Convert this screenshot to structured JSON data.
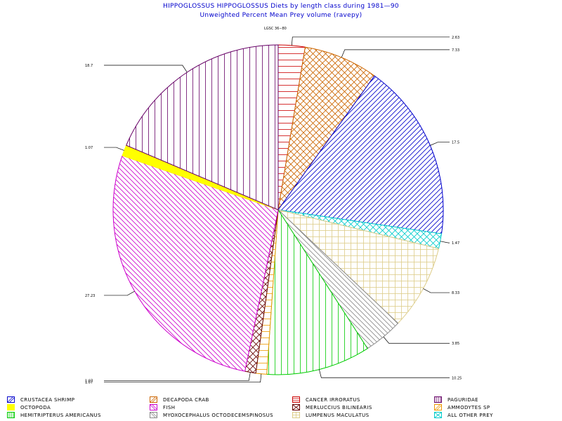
{
  "title_line1": "HIPPOGLOSSUS HIPPOGLOSSUS Diets by length class during 1981—90",
  "title_line2": "Unweighted Percent Mean Prey volume (ravepy)",
  "top_label": "LGSC 36−80",
  "chart_data": {
    "type": "pie",
    "title": "HIPPOGLOSSUS HIPPOGLOSSUS Diets by length class during 1981—90",
    "subtitle": "Unweighted Percent Mean Prey volume (ravepy)",
    "start_angle_deg": 90,
    "direction": "clockwise",
    "slices": [
      {
        "label": "CANCER IRRORATUS",
        "value": 2.63,
        "value_label": "2.63",
        "color": "#cc0000",
        "pattern": "hlines"
      },
      {
        "label": "DECAPODA CRAB",
        "value": 7.33,
        "value_label": "7.33",
        "color": "#cc6600",
        "pattern": "crosshatch"
      },
      {
        "label": "CRUSTACEA SHRIMP",
        "value": 17.5,
        "value_label": "17.5",
        "color": "#0000cc",
        "pattern": "diag"
      },
      {
        "label": "ALL OTHER PREY",
        "value": 1.47,
        "value_label": "1.47",
        "color": "#00cccc",
        "pattern": "crosshatch"
      },
      {
        "label": "LUMPENUS MACULATUS",
        "value": 8.33,
        "value_label": "8.33",
        "color": "#ddcc88",
        "pattern": "grid"
      },
      {
        "label": "MYOXOCEPHALUS OCTODECEMSPINOSUS",
        "value": 3.85,
        "value_label": "3.85",
        "color": "#888888",
        "pattern": "diag2"
      },
      {
        "label": "HEMITRIPTERUS AMERICANUS",
        "value": 10.25,
        "value_label": "10.25",
        "color": "#00cc00",
        "pattern": "vlines"
      },
      {
        "label": "AMMODYTES SP",
        "value": 1.07,
        "value_label": "1.07",
        "color": "#ee9900",
        "pattern": "hlines"
      },
      {
        "label": "MERLUCCIUS BILINEARIS",
        "value": 1.07,
        "value_label": "1.07",
        "color": "#660000",
        "pattern": "crosshatch"
      },
      {
        "label": "FISH",
        "value": 27.23,
        "value_label": "27.23",
        "color": "#cc00cc",
        "pattern": "diag2"
      },
      {
        "label": "OCTOPODA",
        "value": 1.07,
        "value_label": "1.07",
        "color": "#ffff00",
        "pattern": "solid"
      },
      {
        "label": "PAGURIDAE",
        "value": 18.7,
        "value_label": "18.7",
        "color": "#660066",
        "pattern": "vlines"
      }
    ]
  },
  "legend": [
    {
      "label": "CRUSTACEA SHRIMP",
      "color": "#0000cc",
      "pattern": "diag"
    },
    {
      "label": "DECAPODA CRAB",
      "color": "#cc6600",
      "pattern": "diag"
    },
    {
      "label": "CANCER IRRORATUS",
      "color": "#cc0000",
      "pattern": "hlines"
    },
    {
      "label": "PAGURIDAE",
      "color": "#660066",
      "pattern": "vlines"
    },
    {
      "label": "OCTOPODA",
      "color": "#ffff00",
      "pattern": "solid"
    },
    {
      "label": "FISH",
      "color": "#cc00cc",
      "pattern": "diag2"
    },
    {
      "label": "MERLUCCIUS BILINEARIS",
      "color": "#660000",
      "pattern": "crosshatch"
    },
    {
      "label": "AMMODYTES SP",
      "color": "#ee9900",
      "pattern": "diag"
    },
    {
      "label": "HEMITRIPTERUS AMERICANUS",
      "color": "#00cc00",
      "pattern": "vlines"
    },
    {
      "label": "MYOXOCEPHALUS OCTODECEMSPINOSUS",
      "color": "#888888",
      "pattern": "diag2"
    },
    {
      "label": "LUMPENUS MACULATUS",
      "color": "#ddcc88",
      "pattern": "grid"
    },
    {
      "label": "ALL OTHER PREY",
      "color": "#00cccc",
      "pattern": "crosshatch"
    }
  ]
}
